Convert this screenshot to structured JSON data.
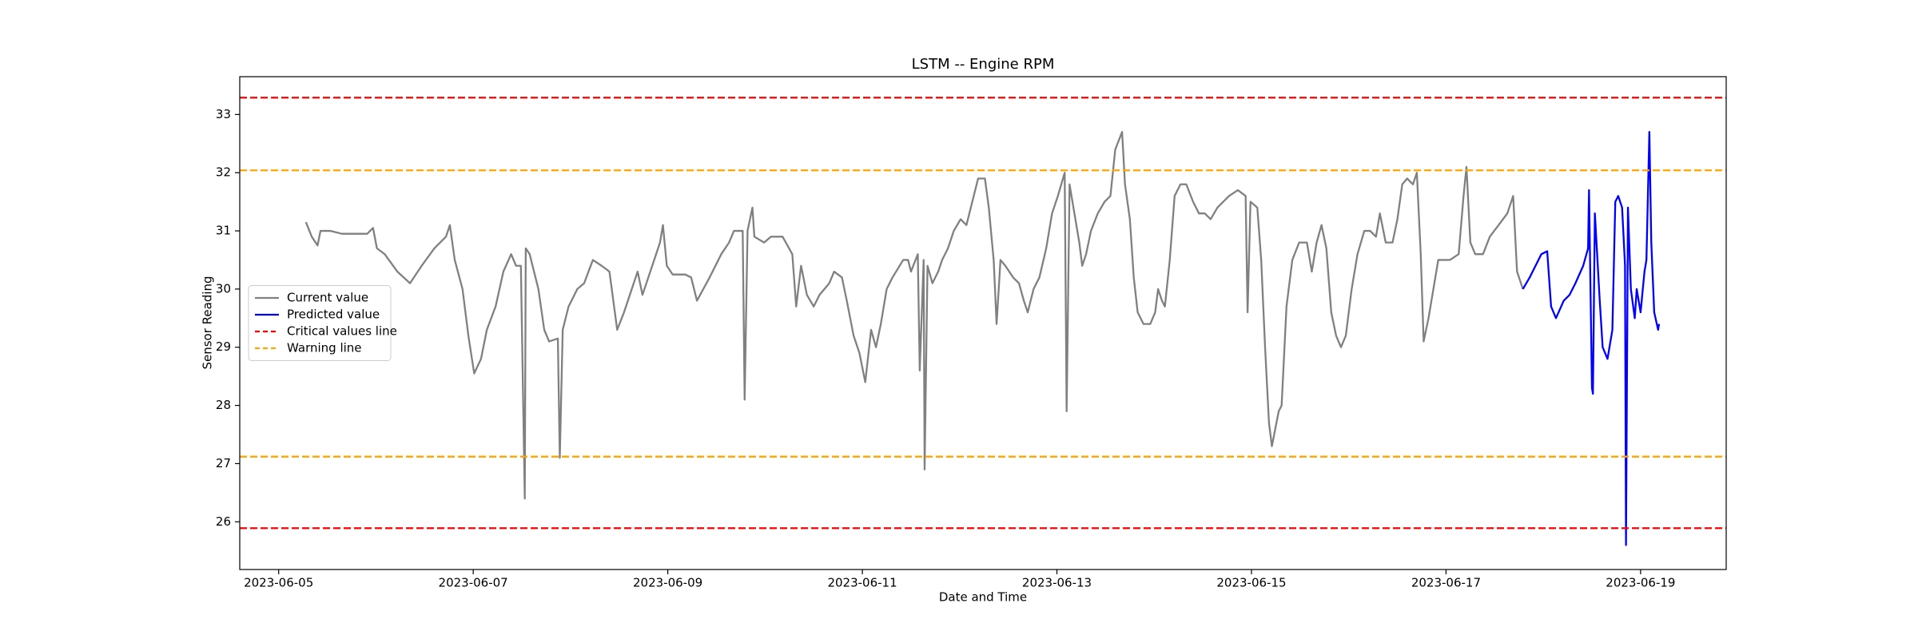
{
  "chart_data": {
    "type": "line",
    "title": "LSTM -- Engine RPM",
    "x_label": "Date and Time",
    "y_label": "Sensor Reading",
    "xlim": [
      4.6,
      19.88
    ],
    "ylim": [
      25.18,
      33.65
    ],
    "xticks": [
      {
        "value": 5,
        "label": "2023-06-05"
      },
      {
        "value": 7,
        "label": "2023-06-07"
      },
      {
        "value": 9,
        "label": "2023-06-09"
      },
      {
        "value": 11,
        "label": "2023-06-11"
      },
      {
        "value": 13,
        "label": "2023-06-13"
      },
      {
        "value": 15,
        "label": "2023-06-15"
      },
      {
        "value": 17,
        "label": "2023-06-17"
      },
      {
        "value": 19,
        "label": "2023-06-19"
      }
    ],
    "yticks": [
      26,
      27,
      28,
      29,
      30,
      31,
      32,
      33
    ],
    "grid": false,
    "legend_loc": "center left",
    "series": [
      {
        "name": "Current value",
        "color": "#808080",
        "x": [
          5.28,
          5.34,
          5.4,
          5.43,
          5.53,
          5.65,
          5.91,
          5.97,
          6.01,
          6.09,
          6.22,
          6.35,
          6.47,
          6.6,
          6.72,
          6.76,
          6.81,
          6.89,
          6.95,
          7.01,
          7.08,
          7.14,
          7.23,
          7.31,
          7.39,
          7.44,
          7.49,
          7.53,
          7.54,
          7.58,
          7.67,
          7.73,
          7.78,
          7.87,
          7.89,
          7.92,
          7.98,
          8.07,
          8.14,
          8.23,
          8.32,
          8.4,
          8.48,
          8.55,
          8.61,
          8.69,
          8.74,
          8.8,
          8.86,
          8.92,
          8.95,
          8.99,
          9.05,
          9.18,
          9.24,
          9.3,
          9.43,
          9.55,
          9.63,
          9.68,
          9.77,
          9.79,
          9.82,
          9.87,
          9.89,
          9.99,
          10.06,
          10.18,
          10.28,
          10.32,
          10.37,
          10.43,
          10.5,
          10.56,
          10.66,
          10.71,
          10.79,
          10.84,
          10.91,
          10.97,
          11.03,
          11.09,
          11.14,
          11.19,
          11.25,
          11.31,
          11.42,
          11.47,
          11.5,
          11.57,
          11.59,
          11.63,
          11.64,
          11.67,
          11.72,
          11.78,
          11.82,
          11.88,
          11.94,
          12.01,
          12.07,
          12.13,
          12.19,
          12.26,
          12.3,
          12.35,
          12.38,
          12.42,
          12.47,
          12.55,
          12.61,
          12.66,
          12.7,
          12.76,
          12.82,
          12.89,
          12.95,
          13.01,
          13.08,
          13.1,
          13.13,
          13.18,
          13.23,
          13.26,
          13.3,
          13.35,
          13.42,
          13.49,
          13.55,
          13.6,
          13.67,
          13.7,
          13.75,
          13.79,
          13.83,
          13.89,
          13.96,
          14.01,
          14.04,
          14.08,
          14.11,
          14.16,
          14.21,
          14.27,
          14.33,
          14.4,
          14.46,
          14.52,
          14.58,
          14.65,
          14.71,
          14.77,
          14.86,
          14.94,
          14.96,
          14.99,
          15.06,
          15.1,
          15.14,
          15.18,
          15.21,
          15.28,
          15.31,
          15.36,
          15.42,
          15.49,
          15.57,
          15.62,
          15.67,
          15.72,
          15.77,
          15.82,
          15.87,
          15.92,
          15.97,
          16.03,
          16.09,
          16.16,
          16.22,
          16.28,
          16.32,
          16.38,
          16.45,
          16.5,
          16.55,
          16.6,
          16.66,
          16.7,
          16.74,
          16.77,
          16.82,
          16.87,
          16.92,
          16.97,
          17.04,
          17.13,
          17.18,
          17.21,
          17.25,
          17.3,
          17.38,
          17.45,
          17.54,
          17.63,
          17.69,
          17.73,
          17.79
        ],
        "values": [
          31.15,
          30.9,
          30.75,
          31.0,
          31.0,
          30.95,
          30.95,
          31.05,
          30.7,
          30.6,
          30.3,
          30.1,
          30.4,
          30.7,
          30.9,
          31.1,
          30.5,
          30.0,
          29.2,
          28.55,
          28.8,
          29.3,
          29.7,
          30.3,
          30.6,
          30.4,
          30.4,
          26.4,
          30.7,
          30.6,
          30.0,
          29.3,
          29.1,
          29.15,
          27.1,
          29.3,
          29.7,
          30.0,
          30.1,
          30.5,
          30.4,
          30.3,
          29.3,
          29.6,
          29.9,
          30.3,
          29.9,
          30.2,
          30.5,
          30.8,
          31.1,
          30.4,
          30.25,
          30.25,
          30.2,
          29.8,
          30.2,
          30.6,
          30.8,
          31.0,
          31.0,
          28.1,
          31.0,
          31.4,
          30.9,
          30.8,
          30.9,
          30.9,
          30.6,
          29.7,
          30.4,
          29.9,
          29.7,
          29.9,
          30.1,
          30.3,
          30.2,
          29.8,
          29.2,
          28.9,
          28.4,
          29.3,
          29.0,
          29.4,
          30.0,
          30.2,
          30.5,
          30.5,
          30.3,
          30.6,
          28.6,
          30.5,
          26.9,
          30.4,
          30.1,
          30.3,
          30.5,
          30.7,
          31.0,
          31.2,
          31.1,
          31.5,
          31.9,
          31.9,
          31.4,
          30.5,
          29.4,
          30.5,
          30.4,
          30.2,
          30.1,
          29.8,
          29.6,
          30.0,
          30.2,
          30.7,
          31.3,
          31.6,
          32.0,
          27.9,
          31.8,
          31.3,
          30.8,
          30.4,
          30.6,
          31.0,
          31.3,
          31.5,
          31.6,
          32.4,
          32.7,
          31.8,
          31.2,
          30.2,
          29.6,
          29.4,
          29.4,
          29.6,
          30.0,
          29.8,
          29.7,
          30.5,
          31.6,
          31.8,
          31.8,
          31.5,
          31.3,
          31.3,
          31.2,
          31.4,
          31.5,
          31.6,
          31.7,
          31.6,
          29.6,
          31.5,
          31.4,
          30.5,
          29.0,
          27.7,
          27.3,
          27.9,
          28.0,
          29.7,
          30.5,
          30.8,
          30.8,
          30.3,
          30.8,
          31.1,
          30.7,
          29.6,
          29.2,
          29.0,
          29.2,
          30.0,
          30.6,
          31.0,
          31.0,
          30.9,
          31.3,
          30.8,
          30.8,
          31.2,
          31.8,
          31.9,
          31.8,
          32.0,
          30.6,
          29.1,
          29.5,
          30.0,
          30.5,
          30.5,
          30.5,
          30.6,
          31.6,
          32.1,
          30.8,
          30.6,
          30.6,
          30.9,
          31.1,
          31.3,
          31.6,
          30.3,
          30.0
        ]
      },
      {
        "name": "Predicted value",
        "color": "#0000ff",
        "x": [
          17.79,
          17.86,
          17.92,
          17.98,
          18.04,
          18.08,
          18.13,
          18.21,
          18.27,
          18.33,
          18.41,
          18.46,
          18.47,
          18.5,
          18.51,
          18.53,
          18.56,
          18.58,
          18.61,
          18.66,
          18.71,
          18.74,
          18.77,
          18.81,
          18.84,
          18.85,
          18.87,
          18.9,
          18.94,
          18.96,
          19.0,
          19.04,
          19.06,
          19.09,
          19.11,
          19.14,
          19.18,
          19.19
        ],
        "values": [
          30.0,
          30.2,
          30.4,
          30.6,
          30.65,
          29.7,
          29.5,
          29.8,
          29.9,
          30.1,
          30.4,
          30.7,
          31.7,
          28.3,
          28.2,
          31.3,
          30.4,
          29.8,
          29.0,
          28.8,
          29.3,
          31.5,
          31.6,
          31.4,
          30.4,
          25.6,
          31.4,
          30.0,
          29.5,
          30.0,
          29.6,
          30.3,
          30.5,
          32.7,
          30.8,
          29.6,
          29.3,
          29.4
        ]
      }
    ],
    "reference_lines": [
      {
        "name": "Critical values line",
        "color": "#ff0000",
        "values": [
          33.29,
          25.89
        ]
      },
      {
        "name": "Warning line",
        "color": "#ffa500",
        "values": [
          32.04,
          27.12
        ]
      }
    ]
  }
}
